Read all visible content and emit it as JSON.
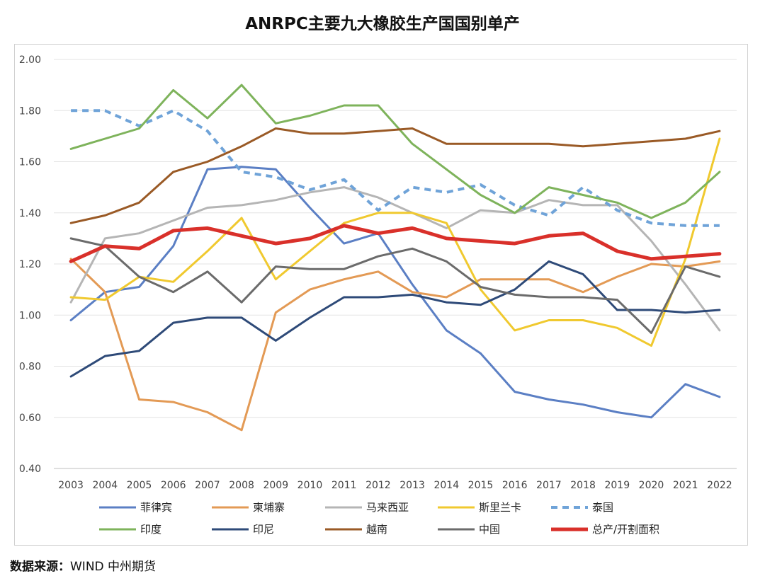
{
  "title": "ANRPC主要九大橡胶生产国国别单产",
  "source": {
    "label": "数据来源：",
    "text": "WIND  中州期货"
  },
  "chart_data": {
    "type": "line",
    "title": "ANRPC主要九大橡胶生产国国别单产",
    "xlabel": "",
    "ylabel": "",
    "ylim": [
      0.4,
      2.0
    ],
    "yticks": [
      "0.40",
      "0.60",
      "0.80",
      "1.00",
      "1.20",
      "1.40",
      "1.60",
      "1.80",
      "2.00"
    ],
    "grid": true,
    "legend_position": "bottom",
    "categories": [
      "2003",
      "2004",
      "2005",
      "2006",
      "2007",
      "2008",
      "2009",
      "2010",
      "2011",
      "2012",
      "2013",
      "2014",
      "2015",
      "2016",
      "2017",
      "2018",
      "2019",
      "2020",
      "2021",
      "2022"
    ],
    "series": [
      {
        "name": "菲律宾",
        "color": "#5b7fc4",
        "dashed": false,
        "width": 3,
        "values": [
          0.98,
          1.09,
          1.11,
          1.27,
          1.57,
          1.58,
          1.57,
          1.42,
          1.28,
          1.32,
          1.12,
          0.94,
          0.85,
          0.7,
          0.67,
          0.65,
          0.62,
          0.6,
          0.73,
          0.68
        ]
      },
      {
        "name": "柬埔寨",
        "color": "#e39a55",
        "dashed": false,
        "width": 3,
        "values": [
          1.22,
          1.09,
          0.67,
          0.66,
          0.62,
          0.55,
          1.01,
          1.1,
          1.14,
          1.17,
          1.09,
          1.07,
          1.14,
          1.14,
          1.14,
          1.09,
          1.15,
          1.2,
          1.19,
          1.21
        ]
      },
      {
        "name": "马来西亚",
        "color": "#b5b5b5",
        "dashed": false,
        "width": 3,
        "values": [
          1.05,
          1.3,
          1.32,
          1.37,
          1.42,
          1.43,
          1.45,
          1.48,
          1.5,
          1.46,
          1.4,
          1.34,
          1.41,
          1.4,
          1.45,
          1.43,
          1.43,
          1.29,
          1.12,
          0.94
        ]
      },
      {
        "name": "斯里兰卡",
        "color": "#f0c92f",
        "dashed": false,
        "width": 3,
        "values": [
          1.07,
          1.06,
          1.15,
          1.13,
          1.25,
          1.38,
          1.14,
          1.25,
          1.36,
          1.4,
          1.4,
          1.36,
          1.1,
          0.94,
          0.98,
          0.98,
          0.95,
          0.88,
          1.22,
          1.69
        ]
      },
      {
        "name": "泰国",
        "color": "#6fa3d8",
        "dashed": true,
        "width": 4,
        "values": [
          1.8,
          1.8,
          1.74,
          1.8,
          1.72,
          1.56,
          1.54,
          1.49,
          1.53,
          1.41,
          1.5,
          1.48,
          1.51,
          1.43,
          1.39,
          1.5,
          1.41,
          1.36,
          1.35,
          1.35
        ]
      },
      {
        "name": "印度",
        "color": "#7eb35b",
        "dashed": false,
        "width": 3,
        "values": [
          1.65,
          1.69,
          1.73,
          1.88,
          1.77,
          1.9,
          1.75,
          1.78,
          1.82,
          1.82,
          1.67,
          1.57,
          1.47,
          1.4,
          1.5,
          1.47,
          1.44,
          1.38,
          1.44,
          1.56
        ]
      },
      {
        "name": "印尼",
        "color": "#2e4a78",
        "dashed": false,
        "width": 3,
        "values": [
          0.76,
          0.84,
          0.86,
          0.97,
          0.99,
          0.99,
          0.9,
          0.99,
          1.07,
          1.07,
          1.08,
          1.05,
          1.04,
          1.1,
          1.21,
          1.16,
          1.02,
          1.02,
          1.01,
          1.02
        ]
      },
      {
        "name": "越南",
        "color": "#9a5a26",
        "dashed": false,
        "width": 3,
        "values": [
          1.36,
          1.39,
          1.44,
          1.56,
          1.6,
          1.66,
          1.73,
          1.71,
          1.71,
          1.72,
          1.73,
          1.67,
          1.67,
          1.67,
          1.67,
          1.66,
          1.67,
          1.68,
          1.69,
          1.72
        ]
      },
      {
        "name": "中国",
        "color": "#6b6b6b",
        "dashed": false,
        "width": 3,
        "values": [
          1.3,
          1.27,
          1.15,
          1.09,
          1.17,
          1.05,
          1.19,
          1.18,
          1.18,
          1.23,
          1.26,
          1.21,
          1.11,
          1.08,
          1.07,
          1.07,
          1.06,
          0.93,
          1.19,
          1.15
        ]
      },
      {
        "name": "总产/开割面积",
        "color": "#d9302a",
        "dashed": false,
        "width": 5,
        "values": [
          1.21,
          1.27,
          1.26,
          1.33,
          1.34,
          1.31,
          1.28,
          1.3,
          1.35,
          1.32,
          1.34,
          1.3,
          1.29,
          1.28,
          1.31,
          1.32,
          1.25,
          1.22,
          1.23,
          1.24
        ]
      }
    ]
  }
}
